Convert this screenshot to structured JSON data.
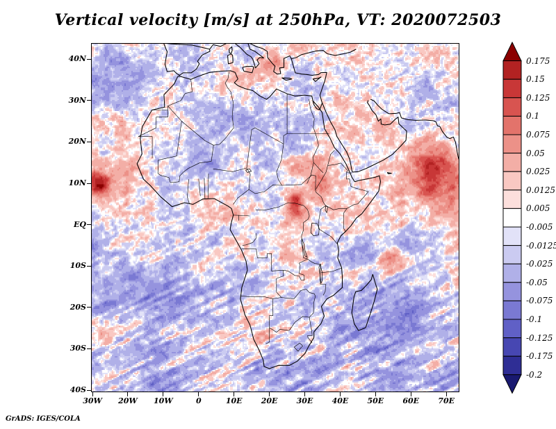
{
  "title": "Vertical velocity [m/s] at 250hPa, VT: 2020072503",
  "footer": "GrADS: IGES/COLA",
  "chart_data": {
    "type": "heatmap",
    "title": "Vertical velocity [m/s] at 250hPa, VT: 2020072503",
    "variable": "Vertical velocity",
    "units": "m/s",
    "level": "250hPa",
    "valid_time": "2020072503",
    "region": "Africa, surrounding oceans, southern Europe, Arabia and Madagascar with coastlines and country borders overlaid in black",
    "x_axis": {
      "labels": [
        "30W",
        "20W",
        "10W",
        "0",
        "10E",
        "20E",
        "30E",
        "40E",
        "50E",
        "60E",
        "70E"
      ],
      "values": [
        -30,
        -20,
        -10,
        0,
        10,
        20,
        30,
        40,
        50,
        60,
        70
      ]
    },
    "y_axis": {
      "labels": [
        "40N",
        "30N",
        "20N",
        "10N",
        "EQ",
        "10S",
        "20S",
        "30S",
        "40S"
      ],
      "values": [
        40,
        30,
        20,
        10,
        0,
        -10,
        -20,
        -30,
        -40
      ]
    },
    "lon_range": [
      -30.4,
      73.7
    ],
    "lat_range": [
      -40.5,
      43.9
    ],
    "grid": false,
    "colorbar": {
      "position": "right",
      "labels": [
        "0.175",
        "0.15",
        "0.125",
        "0.1",
        "0.075",
        "0.05",
        "0.025",
        "0.0125",
        "0.005",
        "-0.005",
        "-0.0125",
        "-0.025",
        "-0.05",
        "-0.075",
        "-0.1",
        "-0.125",
        "-0.175",
        "-0.2"
      ],
      "levels": [
        0.175,
        0.15,
        0.125,
        0.1,
        0.075,
        0.05,
        0.025,
        0.0125,
        0.005,
        -0.005,
        -0.0125,
        -0.025,
        -0.05,
        -0.075,
        -0.1,
        -0.125,
        -0.175,
        -0.2
      ],
      "colors_top_to_bottom": [
        "#8b0000",
        "#b22222",
        "#c83737",
        "#d85450",
        "#e3736b",
        "#ec9188",
        "#f3aea6",
        "#f9c8c2",
        "#fcdfdc",
        "#ffffff",
        "#e2e2f8",
        "#cbcbf1",
        "#b0b0e8",
        "#9593de",
        "#7a79d3",
        "#6060c6",
        "#4747b2",
        "#2f2e95",
        "#191970"
      ]
    },
    "field_description": "Noisy diverging red/blue shaded field of 250 hPa vertical velocity; mostly light blue (subsidence) with pink/red speckle, strong red maxima near 29W/10N, 66E/15N, 54E/9S and 27E/5N, and diagonal wave-like streaks over the southern oceans"
  }
}
